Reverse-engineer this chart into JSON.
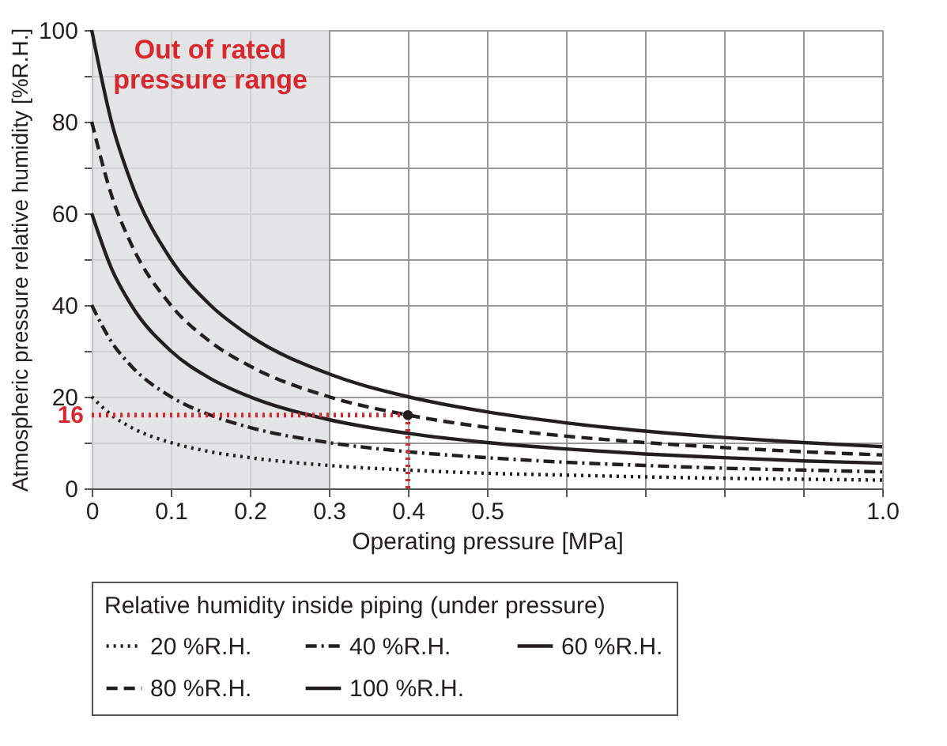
{
  "chart_data": {
    "type": "line",
    "xlabel": "Operating pressure [MPa]",
    "ylabel": "Atmospheric pressure relative humidity [%R.H.]",
    "legend_title": "Relative humidity inside piping (under pressure)",
    "x": [
      0,
      0.025,
      0.05,
      0.1,
      0.15,
      0.2,
      0.3,
      0.4,
      0.5,
      0.6,
      0.7,
      0.8,
      0.9,
      1.0
    ],
    "series": [
      {
        "name": "20 %R.H.",
        "color": "#231f20",
        "line_style": "dotted",
        "values": [
          20,
          16,
          13.3,
          10,
          8,
          6.7,
          5,
          4,
          3.3,
          2.9,
          2.5,
          2.2,
          2,
          1.8
        ]
      },
      {
        "name": "40 %R.H.",
        "color": "#231f20",
        "line_style": "dashdot",
        "values": [
          40,
          32,
          26.7,
          20,
          16,
          13.3,
          10,
          8,
          6.7,
          5.7,
          5,
          4.4,
          4,
          3.6
        ]
      },
      {
        "name": "60 %R.H.",
        "color": "#231f20",
        "line_style": "solid",
        "values": [
          60,
          48,
          40,
          30,
          24,
          20,
          15,
          12,
          10,
          8.6,
          7.5,
          6.7,
          6,
          5.5
        ]
      },
      {
        "name": "80 %R.H.",
        "color": "#231f20",
        "line_style": "dashed",
        "values": [
          80,
          64,
          53.3,
          40,
          32,
          26.7,
          20,
          16,
          13.3,
          11.4,
          10,
          8.9,
          8,
          7.3
        ]
      },
      {
        "name": "100 %R.H.",
        "color": "#231f20",
        "line_style": "solid",
        "values": [
          100,
          80,
          66.7,
          50,
          40,
          33.3,
          25,
          20,
          16.7,
          14.3,
          12.5,
          11.1,
          10,
          9.1
        ]
      }
    ],
    "xlim": [
      0,
      1.0
    ],
    "xticks": [
      0,
      0.1,
      0.2,
      0.3,
      0.4,
      0.5,
      {
        "value": 0.6,
        "label": null
      },
      {
        "value": 0.7,
        "label": null
      },
      {
        "value": 0.8,
        "label": null
      },
      {
        "value": 0.9,
        "label": null
      },
      {
        "value": 1.0,
        "label": "1.0"
      }
    ],
    "ylim": [
      0,
      100
    ],
    "yticks": [
      0,
      {
        "value": 10,
        "label": null
      },
      20,
      {
        "value": 30,
        "label": null
      },
      40,
      {
        "value": 50,
        "label": null
      },
      60,
      {
        "value": 70,
        "label": null
      },
      80,
      {
        "value": 90,
        "label": null
      },
      100
    ],
    "bands": [
      {
        "axis": "x",
        "from": 0,
        "to": 0.3,
        "label": "Out of rated\npressure range",
        "color": "#dcdddf"
      }
    ],
    "ref_lines": [
      {
        "axis": "y",
        "value": 16,
        "label": "16",
        "color": "#d7282f",
        "line_style": "dotted"
      },
      {
        "axis": "x",
        "value": 0.4,
        "label": null,
        "color": "#d7282f",
        "line_style": "dotted"
      }
    ],
    "grid": true,
    "legend": "bottom",
    "marker": "none"
  }
}
